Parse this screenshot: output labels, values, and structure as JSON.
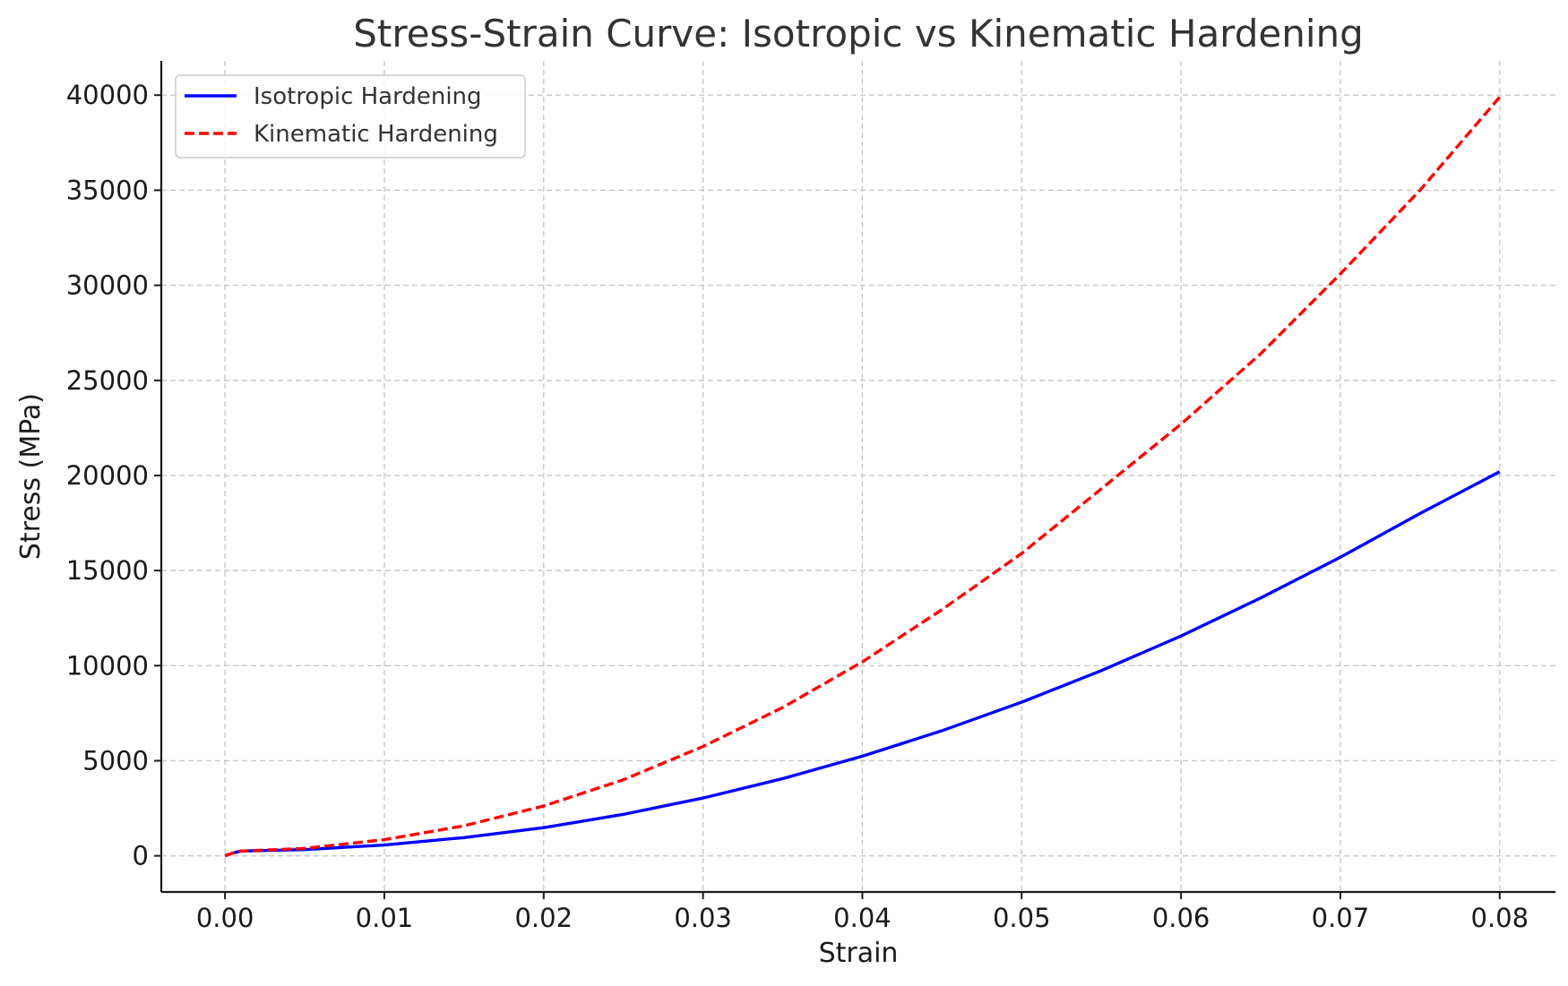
{
  "chart_data": {
    "type": "line",
    "title": "Stress-Strain Curve: Isotropic vs Kinematic Hardening",
    "xlabel": "Strain",
    "ylabel": "Stress (MPa)",
    "xlim": [
      -0.004,
      0.0835
    ],
    "ylim": [
      -1900,
      41800
    ],
    "xticks": [
      0.0,
      0.01,
      0.02,
      0.03,
      0.04,
      0.05,
      0.06,
      0.07,
      0.08
    ],
    "xtick_labels": [
      "0.00",
      "0.01",
      "0.02",
      "0.03",
      "0.04",
      "0.05",
      "0.06",
      "0.07",
      "0.08"
    ],
    "yticks": [
      0,
      5000,
      10000,
      15000,
      20000,
      25000,
      30000,
      35000,
      40000
    ],
    "ytick_labels": [
      "0",
      "5000",
      "10000",
      "15000",
      "20000",
      "25000",
      "30000",
      "35000",
      "40000"
    ],
    "grid": true,
    "legend_position": "top-left",
    "series": [
      {
        "name": "Isotropic Hardening",
        "color": "#0000ff",
        "style": "solid",
        "x": [
          0.0,
          0.0005,
          0.001,
          0.005,
          0.01,
          0.015,
          0.02,
          0.025,
          0.03,
          0.035,
          0.04,
          0.045,
          0.05,
          0.055,
          0.06,
          0.065,
          0.07,
          0.075,
          0.08
        ],
        "y": [
          0,
          150,
          250,
          330,
          570,
          960,
          1480,
          2180,
          3040,
          4060,
          5240,
          6580,
          8080,
          9740,
          11560,
          13560,
          15700,
          18000,
          20200
        ]
      },
      {
        "name": "Kinematic Hardening",
        "color": "#ff0000",
        "style": "dashed",
        "x": [
          0.0,
          0.0005,
          0.001,
          0.005,
          0.01,
          0.015,
          0.02,
          0.025,
          0.03,
          0.035,
          0.04,
          0.045,
          0.05,
          0.055,
          0.06,
          0.065,
          0.07,
          0.075,
          0.08
        ],
        "y": [
          0,
          150,
          250,
          390,
          850,
          1580,
          2620,
          4000,
          5750,
          7800,
          10200,
          12950,
          15900,
          19300,
          22700,
          26400,
          30600,
          35000,
          39900
        ]
      }
    ]
  }
}
